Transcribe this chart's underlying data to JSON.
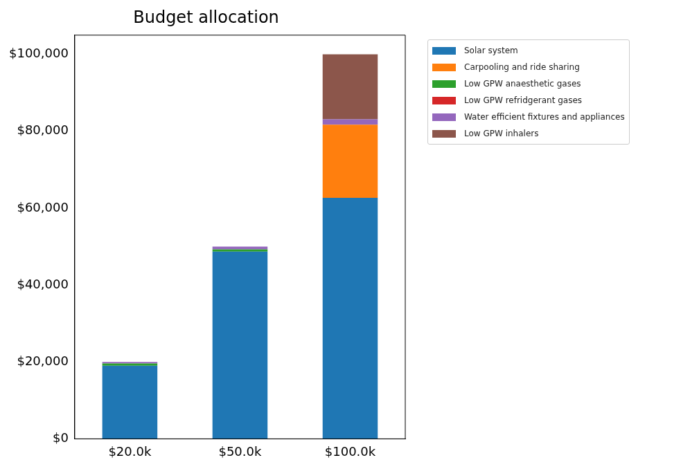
{
  "chart_data": {
    "type": "bar",
    "title": "Budget allocation",
    "stacked": true,
    "categories": [
      "$20.0k",
      "$50.0k",
      "$100.0k"
    ],
    "series": [
      {
        "name": "Solar system",
        "color": "#1f77b4",
        "values": [
          19000,
          48700,
          62700
        ]
      },
      {
        "name": "Carpooling and ride sharing",
        "color": "#ff7f0e",
        "values": [
          0,
          0,
          19000
        ]
      },
      {
        "name": "Low GPW anaesthetic gases",
        "color": "#2ca02c",
        "values": [
          600,
          600,
          0
        ]
      },
      {
        "name": "Low GPW refridgerant gases",
        "color": "#d62728",
        "values": [
          0,
          0,
          0
        ]
      },
      {
        "name": "Water efficient fixtures and appliances",
        "color": "#9467bd",
        "values": [
          400,
          700,
          1400
        ]
      },
      {
        "name": "Low GPW inhalers",
        "color": "#8c564b",
        "values": [
          0,
          0,
          16900
        ]
      }
    ],
    "ylim": [
      0,
      105000
    ],
    "yticks": [
      {
        "value": 0,
        "label": "$0"
      },
      {
        "value": 20000,
        "label": "$20,000"
      },
      {
        "value": 40000,
        "label": "$40,000"
      },
      {
        "value": 60000,
        "label": "$60,000"
      },
      {
        "value": 80000,
        "label": "$80,000"
      },
      {
        "value": 100000,
        "label": "$100,000"
      }
    ],
    "grid": false,
    "legend": "top right"
  }
}
